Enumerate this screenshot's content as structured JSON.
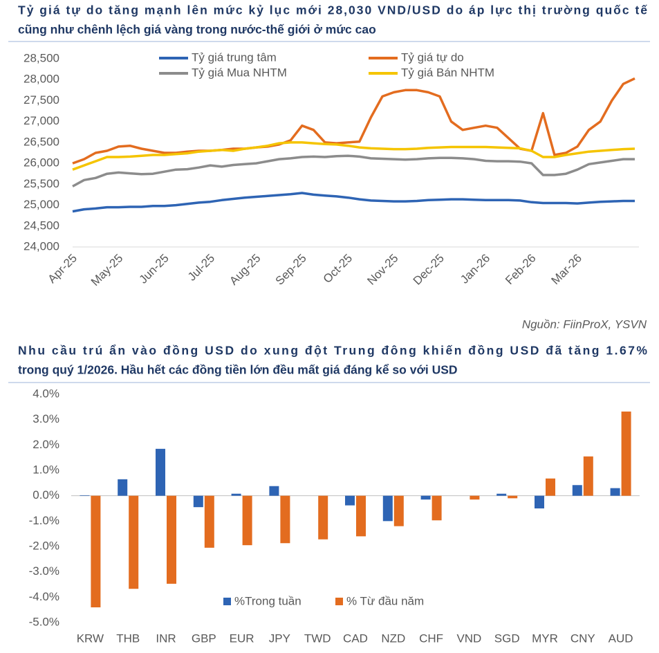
{
  "chart_data": [
    {
      "type": "line",
      "title": [
        "Tỷ giá tự do tăng mạnh lên mức kỷ lục mới 28,030 VND/USD do áp lực thị trường quốc tế",
        "cũng như chênh lệch giá vàng trong nước-thế giới ở mức cao"
      ],
      "categories": [
        "Apr-25",
        null,
        null,
        null,
        "May-25",
        null,
        null,
        null,
        "Jun-25",
        null,
        null,
        null,
        "Jul-25",
        null,
        null,
        null,
        "Aug-25",
        null,
        null,
        null,
        "Sep-25",
        null,
        null,
        null,
        "Oct-25",
        null,
        null,
        null,
        "Nov-25",
        null,
        null,
        null,
        "Dec-25",
        null,
        null,
        null,
        "Jan-26",
        null,
        null,
        null,
        "Feb-26",
        null,
        null,
        null,
        "Mar-26",
        null,
        null,
        null,
        null,
        null
      ],
      "series": [
        {
          "name": "Tỷ giá trung tâm",
          "color": "#2e64b4",
          "values": [
            24850,
            24900,
            24920,
            24950,
            24950,
            24960,
            24960,
            24980,
            24980,
            25000,
            25030,
            25060,
            25080,
            25120,
            25150,
            25180,
            25200,
            25220,
            25240,
            25260,
            25290,
            25250,
            25230,
            25210,
            25180,
            25140,
            25110,
            25100,
            25090,
            25090,
            25100,
            25120,
            25130,
            25140,
            25140,
            25130,
            25120,
            25120,
            25120,
            25110,
            25070,
            25050,
            25050,
            25050,
            25040,
            25060,
            25080,
            25090,
            25100,
            25100
          ]
        },
        {
          "name": "Tỷ giá tự do",
          "color": "#e36c1f",
          "values": [
            26000,
            26100,
            26250,
            26300,
            26400,
            26420,
            26350,
            26300,
            26250,
            26250,
            26280,
            26300,
            26300,
            26320,
            26350,
            26350,
            26380,
            26400,
            26450,
            26550,
            26900,
            26800,
            26500,
            26480,
            26500,
            26520,
            27100,
            27600,
            27700,
            27750,
            27750,
            27700,
            27600,
            27000,
            26800,
            26850,
            26900,
            26850,
            26600,
            26350,
            26300,
            27200,
            26200,
            26250,
            26400,
            26800,
            27000,
            27500,
            27900,
            28030
          ]
        },
        {
          "name": "Tỷ giá Mua NHTM",
          "color": "#8c8c8c",
          "values": [
            25450,
            25600,
            25650,
            25750,
            25780,
            25760,
            25740,
            25750,
            25800,
            25850,
            25860,
            25900,
            25950,
            25920,
            25960,
            25980,
            26000,
            26050,
            26100,
            26120,
            26150,
            26160,
            26150,
            26170,
            26180,
            26160,
            26120,
            26110,
            26100,
            26090,
            26100,
            26120,
            26130,
            26130,
            26120,
            26100,
            26060,
            26050,
            26050,
            26040,
            26000,
            25720,
            25720,
            25750,
            25850,
            25980,
            26020,
            26060,
            26100,
            26100
          ]
        },
        {
          "name": "Tỷ giá Bán NHTM",
          "color": "#f5c400",
          "values": [
            25850,
            25950,
            26050,
            26150,
            26150,
            26160,
            26180,
            26200,
            26200,
            26220,
            26240,
            26280,
            26300,
            26320,
            26300,
            26350,
            26380,
            26420,
            26480,
            26500,
            26500,
            26480,
            26460,
            26450,
            26420,
            26380,
            26360,
            26350,
            26340,
            26340,
            26350,
            26370,
            26380,
            26390,
            26390,
            26390,
            26390,
            26380,
            26370,
            26360,
            26300,
            26150,
            26150,
            26200,
            26240,
            26280,
            26300,
            26320,
            26340,
            26350
          ]
        }
      ],
      "ylim": [
        24000,
        28500
      ],
      "yticks": [
        {
          "value": 24000,
          "label": "24,000"
        },
        {
          "value": 24500,
          "label": "24,500"
        },
        {
          "value": 25000,
          "label": "25,000"
        },
        {
          "value": 25500,
          "label": "25,500"
        },
        {
          "value": 26000,
          "label": "26,000"
        },
        {
          "value": 26500,
          "label": "26,500"
        },
        {
          "value": 27000,
          "label": "27,000"
        },
        {
          "value": 27500,
          "label": "27,500"
        },
        {
          "value": 28000,
          "label": "28,000"
        },
        {
          "value": 28500,
          "label": "28,500"
        }
      ],
      "grid": false,
      "legend": "top",
      "source": "Nguồn: FiinProX, YSVN"
    },
    {
      "type": "bar",
      "title": [
        "Nhu cầu trú ẩn vào đồng USD do xung đột Trung đông khiến đồng USD đã tăng 1.67%",
        "trong quý 1/2026. Hầu hết các đồng tiền lớn đều mất giá đáng kể so với USD"
      ],
      "categories": [
        "KRW",
        "THB",
        "INR",
        "GBP",
        "EUR",
        "JPY",
        "TWD",
        "CAD",
        "NZD",
        "CHF",
        "VND",
        "SGD",
        "MYR",
        "CNY",
        "AUD"
      ],
      "series": [
        {
          "name": "%Trong tuần",
          "color": "#2e64b4",
          "values": [
            0.02,
            0.65,
            1.85,
            -0.45,
            0.08,
            0.38,
            0,
            -0.38,
            -1.0,
            -0.15,
            0,
            0.08,
            -0.5,
            0.42,
            0.3
          ]
        },
        {
          "name": "% Từ đầu năm",
          "color": "#e36c1f",
          "values": [
            -4.4,
            -3.67,
            -3.47,
            -2.05,
            -1.95,
            -1.87,
            -1.72,
            -1.6,
            -1.2,
            -0.97,
            -0.15,
            -0.1,
            0.68,
            1.55,
            3.32
          ]
        }
      ],
      "ylim": [
        -5,
        4
      ],
      "yticks": [
        {
          "value": -5,
          "label": "-5.0%"
        },
        {
          "value": -4,
          "label": "-4.0%"
        },
        {
          "value": -3,
          "label": "-3.0%"
        },
        {
          "value": -2,
          "label": "-2.0%"
        },
        {
          "value": -1,
          "label": "-1.0%"
        },
        {
          "value": 0,
          "label": "0.0%"
        },
        {
          "value": 1,
          "label": "1.0%"
        },
        {
          "value": 2,
          "label": "2.0%"
        },
        {
          "value": 3,
          "label": "3.0%"
        },
        {
          "value": 4,
          "label": "4.0%"
        }
      ],
      "grid": false,
      "legend": "bottom"
    }
  ]
}
